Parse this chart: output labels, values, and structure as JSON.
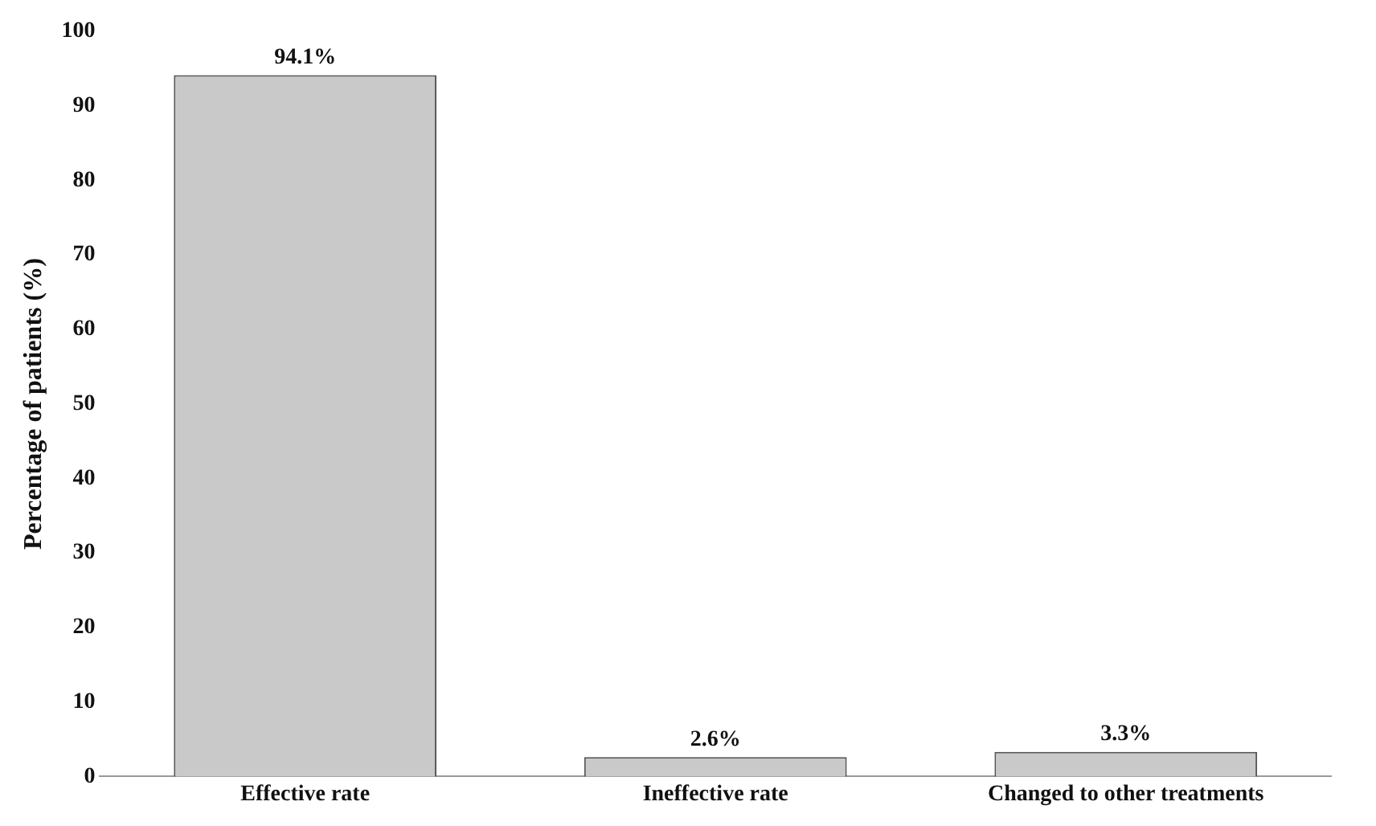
{
  "chart_data": {
    "type": "bar",
    "ylabel": "Percentage of patients (%)",
    "categories": [
      "Effective rate",
      "Ineffective rate",
      "Changed to other treatments"
    ],
    "values": [
      94.1,
      2.6,
      3.3
    ],
    "value_labels": [
      "94.1%",
      "2.6%",
      "3.3%"
    ],
    "color": "#c9c9c9",
    "ylim": [
      0,
      100
    ],
    "yticks": [
      0,
      10,
      20,
      30,
      40,
      50,
      60,
      70,
      80,
      90,
      100
    ],
    "grid": false,
    "legend": false
  }
}
